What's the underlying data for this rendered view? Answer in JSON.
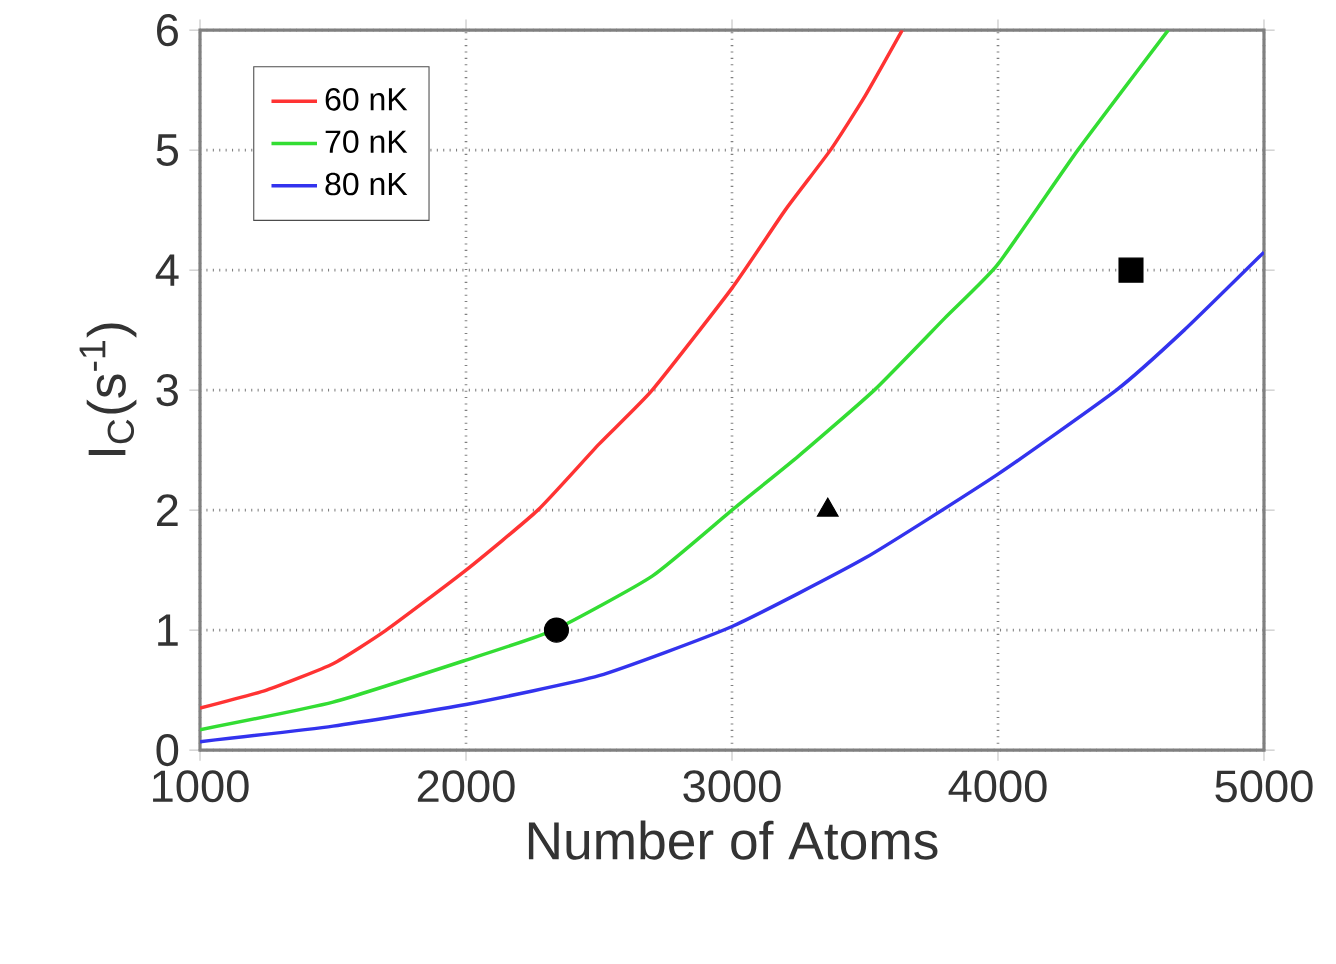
{
  "chart_data": {
    "type": "line",
    "xlabel": "Number of Atoms",
    "ylabel": "I$_{C}$(s$^{-1}$)",
    "xlim": [
      1000,
      5000
    ],
    "ylim": [
      0,
      6
    ],
    "xticks": [
      1000,
      2000,
      3000,
      4000,
      5000
    ],
    "yticks": [
      0,
      1,
      2,
      3,
      4,
      5,
      6
    ],
    "grid": true,
    "legend": "top left",
    "marker": "none",
    "line_style": "solid",
    "series": [
      {
        "name": "60 nK",
        "color": "#ff3333",
        "x": [
          1000,
          1250,
          1500,
          1700,
          2000,
          2270,
          2500,
          2700,
          3000,
          3200,
          3370,
          3500,
          3640
        ],
        "values": [
          0.35,
          0.5,
          0.72,
          1.0,
          1.5,
          2.0,
          2.55,
          3.0,
          3.85,
          4.5,
          5.0,
          5.45,
          6.0
        ]
      },
      {
        "name": "70 nK",
        "color": "#33dd33",
        "x": [
          1000,
          1500,
          2000,
          2330,
          2700,
          3000,
          3250,
          3535,
          3800,
          4000,
          4300,
          4640
        ],
        "values": [
          0.17,
          0.4,
          0.75,
          1.0,
          1.45,
          2.0,
          2.45,
          3.0,
          3.6,
          4.05,
          5.0,
          6.0
        ]
      },
      {
        "name": "80 nK",
        "color": "#3333ee",
        "x": [
          1000,
          1500,
          2000,
          2500,
          3000,
          3500,
          4000,
          4445,
          4700,
          5000
        ],
        "values": [
          0.07,
          0.2,
          0.38,
          0.62,
          1.03,
          1.6,
          2.3,
          3.0,
          3.5,
          4.15
        ]
      },
      {
        "type": "scatter",
        "marker": "circle",
        "color": "#000000",
        "x": [
          2340
        ],
        "values": [
          1.0
        ]
      },
      {
        "type": "scatter",
        "marker": "triangle",
        "color": "#000000",
        "x": [
          3360
        ],
        "values": [
          2.0
        ]
      },
      {
        "type": "scatter",
        "marker": "square",
        "color": "#000000",
        "x": [
          4500
        ],
        "values": [
          4.0
        ]
      }
    ]
  }
}
